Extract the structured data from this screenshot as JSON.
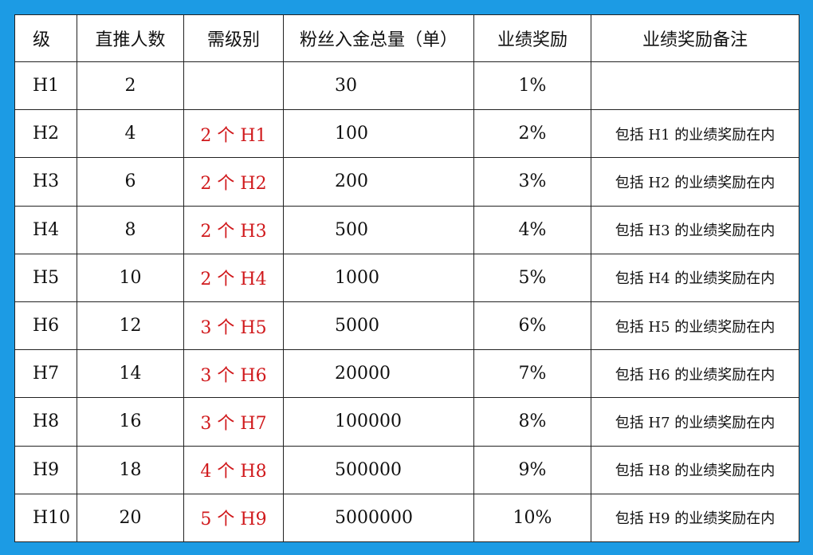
{
  "table": {
    "header": [
      "级",
      "直推人数",
      "需级别",
      "粉丝入金总量（单）",
      "业绩奖励",
      "业绩奖励备注"
    ],
    "rows": [
      [
        "H1",
        "2",
        null,
        "30",
        "1%",
        null
      ],
      [
        "H2",
        "4",
        "2 个 H1",
        "100",
        "2%",
        "包括 H1 的业绩奖励在内"
      ],
      [
        "H3",
        "6",
        "2 个 H2",
        "200",
        "3%",
        "包括 H2 的业绩奖励在内"
      ],
      [
        "H4",
        "8",
        "2 个 H3",
        "500",
        "4%",
        "包括 H3 的业绩奖励在内"
      ],
      [
        "H5",
        "10",
        "2 个 H4",
        "1000",
        "5%",
        "包括 H4 的业绩奖励在内"
      ],
      [
        "H6",
        "12",
        "3 个 H5",
        "5000",
        "6%",
        "包括 H5 的业绩奖励在内"
      ],
      [
        "H7",
        "14",
        "3 个 H6",
        "20000",
        "7%",
        "包括 H6 的业绩奖励在内"
      ],
      [
        "H8",
        "16",
        "3 个 H7",
        "100000",
        "8%",
        "包括 H7 的业绩奖励在内"
      ],
      [
        "H9",
        "18",
        "4 个 H8",
        "500000",
        "9%",
        "包括 H8 的业绩奖励在内"
      ],
      [
        "H10",
        "20",
        "5 个 H9",
        "5000000",
        "10%",
        "包括 H9 的业绩奖励在内"
      ]
    ]
  }
}
